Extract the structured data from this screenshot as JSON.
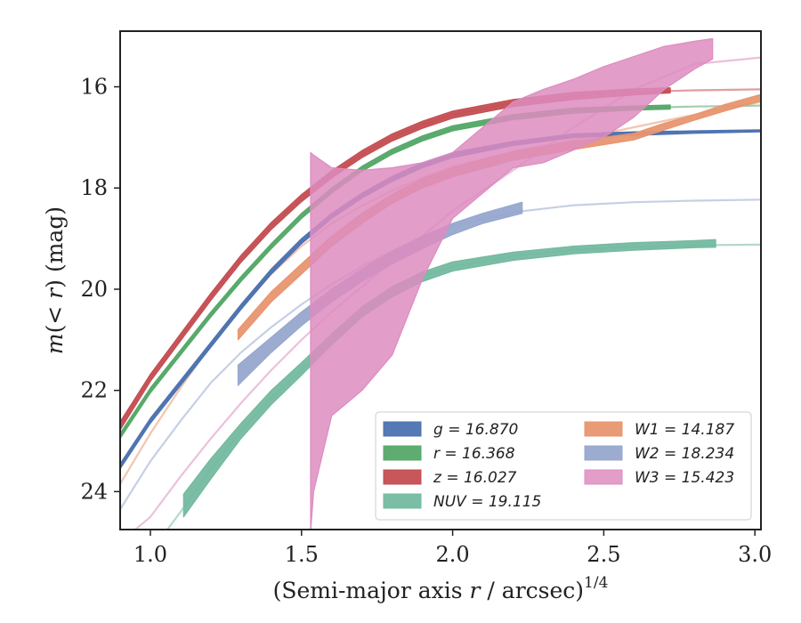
{
  "chart_data": {
    "type": "line",
    "title": "",
    "xlabel_main": "(Semi-major axis ",
    "xlabel_var": "r",
    "xlabel_unit": " / arcsec)",
    "xlabel_sup": "1/4",
    "ylabel_pre": "m(< ",
    "ylabel_var": "r",
    "ylabel_post": ") (mag)",
    "xlim": [
      0.9,
      3.02
    ],
    "ylim": [
      24.75,
      14.9
    ],
    "y_inverted": true,
    "xticks": [
      1.0,
      1.5,
      2.0,
      2.5,
      3.0
    ],
    "xtick_labels": [
      "1.0",
      "1.5",
      "2.0",
      "2.5",
      "3.0"
    ],
    "yticks": [
      16,
      18,
      20,
      22,
      24
    ],
    "ytick_labels": [
      "16",
      "18",
      "20",
      "22",
      "24"
    ],
    "grid": false,
    "legend_position": "lower-right",
    "series": [
      {
        "name": "g = 16.870",
        "color": "#4c72b0",
        "model": [
          [
            0.9,
            23.5
          ],
          [
            1.0,
            22.6
          ],
          [
            1.1,
            21.85
          ],
          [
            1.2,
            21.1
          ],
          [
            1.3,
            20.35
          ],
          [
            1.4,
            19.65
          ],
          [
            1.5,
            19.05
          ],
          [
            1.6,
            18.55
          ],
          [
            1.7,
            18.15
          ],
          [
            1.8,
            17.82
          ],
          [
            1.9,
            17.55
          ],
          [
            2.0,
            17.35
          ],
          [
            2.2,
            17.12
          ],
          [
            2.4,
            16.97
          ],
          [
            2.6,
            16.92
          ],
          [
            2.8,
            16.89
          ],
          [
            3.02,
            16.87
          ]
        ],
        "data_x": [
          0.9,
          1.0,
          1.1,
          1.2,
          1.3,
          1.4,
          1.5,
          1.6,
          1.7,
          1.8,
          1.9,
          2.0,
          2.2,
          2.4,
          2.6,
          2.8,
          3.02
        ],
        "data_lo": [
          23.45,
          22.55,
          21.8,
          21.05,
          20.3,
          19.6,
          19.0,
          18.5,
          18.1,
          17.77,
          17.5,
          17.3,
          17.08,
          16.93,
          16.89,
          16.87,
          16.85
        ],
        "data_hi": [
          23.55,
          22.65,
          21.9,
          21.15,
          20.4,
          19.7,
          19.1,
          18.6,
          18.2,
          17.87,
          17.6,
          17.4,
          17.16,
          17.0,
          16.96,
          16.92,
          16.89
        ]
      },
      {
        "name": "r = 16.368",
        "color": "#55a868",
        "model": [
          [
            0.9,
            22.9
          ],
          [
            1.0,
            22.0
          ],
          [
            1.1,
            21.25
          ],
          [
            1.2,
            20.5
          ],
          [
            1.3,
            19.8
          ],
          [
            1.4,
            19.15
          ],
          [
            1.5,
            18.55
          ],
          [
            1.6,
            18.05
          ],
          [
            1.7,
            17.62
          ],
          [
            1.8,
            17.28
          ],
          [
            1.9,
            17.02
          ],
          [
            2.0,
            16.82
          ],
          [
            2.2,
            16.6
          ],
          [
            2.4,
            16.47
          ],
          [
            2.6,
            16.42
          ],
          [
            2.8,
            16.39
          ],
          [
            3.02,
            16.37
          ]
        ],
        "data_x": [
          0.9,
          1.0,
          1.1,
          1.2,
          1.3,
          1.4,
          1.5,
          1.6,
          1.7,
          1.8,
          1.9,
          2.0,
          2.2,
          2.4,
          2.6,
          2.72
        ],
        "data_lo": [
          22.85,
          21.95,
          21.2,
          20.45,
          19.75,
          19.1,
          18.5,
          18.0,
          17.57,
          17.23,
          16.97,
          16.77,
          16.55,
          16.42,
          16.38,
          16.36
        ],
        "data_hi": [
          22.95,
          22.05,
          21.3,
          20.55,
          19.85,
          19.2,
          18.6,
          18.1,
          17.67,
          17.33,
          17.07,
          16.87,
          16.65,
          16.52,
          16.46,
          16.44
        ]
      },
      {
        "name": "z = 16.027",
        "color": "#c44e52",
        "model": [
          [
            0.9,
            22.7
          ],
          [
            1.0,
            21.75
          ],
          [
            1.1,
            20.95
          ],
          [
            1.2,
            20.15
          ],
          [
            1.3,
            19.4
          ],
          [
            1.4,
            18.75
          ],
          [
            1.5,
            18.2
          ],
          [
            1.6,
            17.73
          ],
          [
            1.7,
            17.33
          ],
          [
            1.8,
            17.0
          ],
          [
            1.9,
            16.75
          ],
          [
            2.0,
            16.55
          ],
          [
            2.2,
            16.32
          ],
          [
            2.4,
            16.18
          ],
          [
            2.6,
            16.1
          ],
          [
            2.8,
            16.07
          ],
          [
            3.02,
            16.05
          ]
        ],
        "data_x": [
          0.9,
          1.0,
          1.1,
          1.2,
          1.3,
          1.4,
          1.5,
          1.6,
          1.7,
          1.8,
          1.9,
          2.0,
          2.2,
          2.4,
          2.6,
          2.72
        ],
        "data_lo": [
          22.62,
          21.68,
          20.88,
          20.08,
          19.33,
          18.68,
          18.13,
          17.66,
          17.26,
          16.93,
          16.68,
          16.48,
          16.25,
          16.11,
          16.04,
          16.02
        ],
        "data_hi": [
          22.78,
          21.82,
          21.02,
          20.22,
          19.47,
          18.82,
          18.27,
          17.8,
          17.4,
          17.07,
          16.82,
          16.62,
          16.39,
          16.25,
          16.16,
          16.12
        ]
      },
      {
        "name": "NUV = 19.115",
        "color": "#74b9a0",
        "model": [
          [
            0.9,
            25.7
          ],
          [
            1.0,
            25.2
          ],
          [
            1.1,
            24.4
          ],
          [
            1.2,
            23.55
          ],
          [
            1.3,
            22.8
          ],
          [
            1.4,
            22.15
          ],
          [
            1.5,
            21.6
          ],
          [
            1.6,
            21.0
          ],
          [
            1.7,
            20.45
          ],
          [
            1.8,
            20.05
          ],
          [
            1.9,
            19.75
          ],
          [
            2.0,
            19.55
          ],
          [
            2.2,
            19.35
          ],
          [
            2.4,
            19.22
          ],
          [
            2.6,
            19.16
          ],
          [
            2.8,
            19.13
          ],
          [
            3.02,
            19.12
          ]
        ],
        "data_x": [
          1.11,
          1.2,
          1.3,
          1.4,
          1.5,
          1.6,
          1.7,
          1.8,
          1.9,
          2.0,
          2.2,
          2.4,
          2.6,
          2.8,
          2.87
        ],
        "data_lo": [
          24.05,
          23.35,
          22.65,
          22.0,
          21.45,
          20.88,
          20.35,
          19.95,
          19.66,
          19.46,
          19.27,
          19.15,
          19.08,
          19.04,
          19.02
        ],
        "data_hi": [
          24.5,
          23.75,
          22.95,
          22.28,
          21.7,
          21.1,
          20.55,
          20.15,
          19.85,
          19.64,
          19.43,
          19.3,
          19.23,
          19.18,
          19.17
        ]
      },
      {
        "name": "W1 = 14.187",
        "color": "#e8956f",
        "model": [
          [
            0.9,
            23.85
          ],
          [
            1.0,
            22.85
          ],
          [
            1.1,
            21.95
          ],
          [
            1.2,
            21.1
          ],
          [
            1.3,
            20.35
          ],
          [
            1.4,
            19.7
          ],
          [
            1.5,
            19.15
          ],
          [
            1.6,
            18.7
          ],
          [
            1.7,
            18.35
          ],
          [
            1.8,
            18.05
          ],
          [
            1.9,
            17.8
          ],
          [
            2.0,
            17.58
          ],
          [
            2.2,
            17.28
          ],
          [
            2.4,
            17.05
          ],
          [
            2.6,
            16.8
          ],
          [
            2.8,
            16.55
          ],
          [
            3.02,
            16.3
          ]
        ],
        "data_x": [
          1.29,
          1.4,
          1.5,
          1.6,
          1.7,
          1.8,
          1.9,
          2.0,
          2.2,
          2.4,
          2.6,
          2.7,
          2.8,
          2.9,
          3.02
        ],
        "data_lo": [
          20.8,
          20.05,
          19.5,
          18.95,
          18.5,
          18.12,
          17.82,
          17.6,
          17.28,
          17.08,
          16.92,
          16.72,
          16.55,
          16.35,
          16.15
        ],
        "data_hi": [
          21.0,
          20.25,
          19.7,
          19.15,
          18.7,
          18.3,
          18.0,
          17.78,
          17.45,
          17.24,
          17.05,
          16.85,
          16.66,
          16.48,
          16.28
        ]
      },
      {
        "name": "W2 = 18.234",
        "color": "#97a7cd",
        "model": [
          [
            0.9,
            24.35
          ],
          [
            1.0,
            23.4
          ],
          [
            1.1,
            22.6
          ],
          [
            1.2,
            21.85
          ],
          [
            1.3,
            21.25
          ],
          [
            1.4,
            20.75
          ],
          [
            1.5,
            20.3
          ],
          [
            1.6,
            19.9
          ],
          [
            1.7,
            19.55
          ],
          [
            1.8,
            19.25
          ],
          [
            1.9,
            18.98
          ],
          [
            2.0,
            18.75
          ],
          [
            2.2,
            18.48
          ],
          [
            2.4,
            18.34
          ],
          [
            2.6,
            18.28
          ],
          [
            2.8,
            18.25
          ],
          [
            3.02,
            18.23
          ]
        ],
        "data_x": [
          1.29,
          1.4,
          1.5,
          1.6,
          1.7,
          1.8,
          1.9,
          2.0,
          2.1,
          2.23
        ],
        "data_lo": [
          21.5,
          20.95,
          20.45,
          20.0,
          19.6,
          19.25,
          18.95,
          18.7,
          18.5,
          18.28
        ],
        "data_hi": [
          21.9,
          21.25,
          20.72,
          20.25,
          19.85,
          19.5,
          19.2,
          18.92,
          18.7,
          18.5
        ]
      },
      {
        "name": "W3 = 15.423",
        "color": "#dd8cc0",
        "model": [
          [
            0.9,
            25.0
          ],
          [
            1.0,
            24.5
          ],
          [
            1.1,
            23.7
          ],
          [
            1.2,
            22.95
          ],
          [
            1.3,
            22.25
          ],
          [
            1.4,
            21.6
          ],
          [
            1.5,
            21.0
          ],
          [
            1.6,
            20.45
          ],
          [
            1.7,
            19.95
          ],
          [
            1.8,
            19.45
          ],
          [
            1.9,
            18.95
          ],
          [
            2.0,
            18.45
          ],
          [
            2.2,
            17.65
          ],
          [
            2.4,
            16.8
          ],
          [
            2.6,
            16.05
          ],
          [
            2.8,
            15.55
          ],
          [
            3.02,
            15.42
          ]
        ],
        "data_x": [
          1.53,
          1.54,
          1.6,
          1.7,
          1.8,
          1.9,
          2.0,
          2.1,
          2.2,
          2.3,
          2.4,
          2.5,
          2.6,
          2.7,
          2.8,
          2.86
        ],
        "data_lo": [
          24.8,
          24.0,
          22.5,
          22.0,
          21.3,
          19.8,
          18.6,
          18.1,
          17.6,
          17.5,
          17.25,
          17.0,
          16.6,
          16.05,
          15.65,
          15.45
        ],
        "data_hi": [
          17.3,
          17.35,
          17.6,
          17.65,
          17.6,
          17.5,
          17.3,
          16.8,
          16.3,
          16.05,
          15.85,
          15.6,
          15.4,
          15.2,
          15.1,
          15.05
        ]
      }
    ]
  }
}
